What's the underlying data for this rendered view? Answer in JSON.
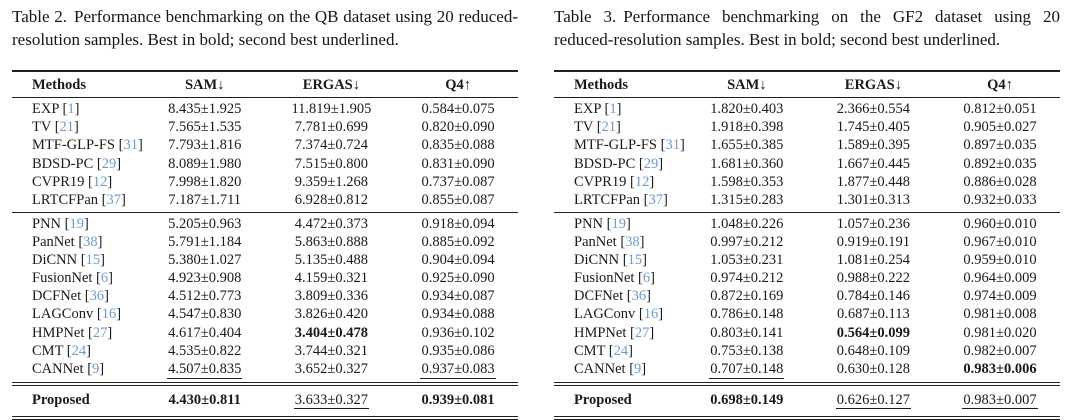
{
  "colors": {
    "citation": "#6b9bd2",
    "text": "#141414",
    "rule": "#1f1f1f"
  },
  "tables": [
    {
      "id": "table-2-qb",
      "caption_label": "Table 2.",
      "caption_text": "Performance benchmarking on the QB dataset using 20 reduced-resolution samples. Best in bold; second best underlined.",
      "headers": [
        "Methods",
        "SAM↓",
        "ERGAS↓",
        "Q4↑"
      ],
      "groups": [
        {
          "rows": [
            {
              "method": "EXP",
              "cite": "1",
              "sam": {
                "v": "8.435±1.925",
                "s": ""
              },
              "ergas": {
                "v": "11.819±1.905",
                "s": ""
              },
              "q4": {
                "v": "0.584±0.075",
                "s": ""
              }
            },
            {
              "method": "TV",
              "cite": "21",
              "sam": {
                "v": "7.565±1.535",
                "s": ""
              },
              "ergas": {
                "v": "7.781±0.699",
                "s": ""
              },
              "q4": {
                "v": "0.820±0.090",
                "s": ""
              }
            },
            {
              "method": "MTF-GLP-FS",
              "cite": "31",
              "sam": {
                "v": "7.793±1.816",
                "s": ""
              },
              "ergas": {
                "v": "7.374±0.724",
                "s": ""
              },
              "q4": {
                "v": "0.835±0.088",
                "s": ""
              }
            },
            {
              "method": "BDSD-PC",
              "cite": "29",
              "sam": {
                "v": "8.089±1.980",
                "s": ""
              },
              "ergas": {
                "v": "7.515±0.800",
                "s": ""
              },
              "q4": {
                "v": "0.831±0.090",
                "s": ""
              }
            },
            {
              "method": "CVPR19",
              "cite": "12",
              "sam": {
                "v": "7.998±1.820",
                "s": ""
              },
              "ergas": {
                "v": "9.359±1.268",
                "s": ""
              },
              "q4": {
                "v": "0.737±0.087",
                "s": ""
              }
            },
            {
              "method": "LRTCFPan",
              "cite": "37",
              "sam": {
                "v": "7.187±1.711",
                "s": ""
              },
              "ergas": {
                "v": "6.928±0.812",
                "s": ""
              },
              "q4": {
                "v": "0.855±0.087",
                "s": ""
              }
            }
          ]
        },
        {
          "rows": [
            {
              "method": "PNN",
              "cite": "19",
              "sam": {
                "v": "5.205±0.963",
                "s": ""
              },
              "ergas": {
                "v": "4.472±0.373",
                "s": ""
              },
              "q4": {
                "v": "0.918±0.094",
                "s": ""
              }
            },
            {
              "method": "PanNet",
              "cite": "38",
              "sam": {
                "v": "5.791±1.184",
                "s": ""
              },
              "ergas": {
                "v": "5.863±0.888",
                "s": ""
              },
              "q4": {
                "v": "0.885±0.092",
                "s": ""
              }
            },
            {
              "method": "DiCNN",
              "cite": "15",
              "sam": {
                "v": "5.380±1.027",
                "s": ""
              },
              "ergas": {
                "v": "5.135±0.488",
                "s": ""
              },
              "q4": {
                "v": "0.904±0.094",
                "s": ""
              }
            },
            {
              "method": "FusionNet",
              "cite": "6",
              "sam": {
                "v": "4.923±0.908",
                "s": ""
              },
              "ergas": {
                "v": "4.159±0.321",
                "s": ""
              },
              "q4": {
                "v": "0.925±0.090",
                "s": ""
              }
            },
            {
              "method": "DCFNet",
              "cite": "36",
              "sam": {
                "v": "4.512±0.773",
                "s": ""
              },
              "ergas": {
                "v": "3.809±0.336",
                "s": ""
              },
              "q4": {
                "v": "0.934±0.087",
                "s": ""
              }
            },
            {
              "method": "LAGConv",
              "cite": "16",
              "sam": {
                "v": "4.547±0.830",
                "s": ""
              },
              "ergas": {
                "v": "3.826±0.420",
                "s": ""
              },
              "q4": {
                "v": "0.934±0.088",
                "s": ""
              }
            },
            {
              "method": "HMPNet",
              "cite": "27",
              "sam": {
                "v": "4.617±0.404",
                "s": ""
              },
              "ergas": {
                "v": "3.404±0.478",
                "s": "b"
              },
              "q4": {
                "v": "0.936±0.102",
                "s": ""
              }
            },
            {
              "method": "CMT",
              "cite": "24",
              "sam": {
                "v": "4.535±0.822",
                "s": ""
              },
              "ergas": {
                "v": "3.744±0.321",
                "s": ""
              },
              "q4": {
                "v": "0.935±0.086",
                "s": ""
              }
            },
            {
              "method": "CANNet",
              "cite": "9",
              "sam": {
                "v": "4.507±0.835",
                "s": "u"
              },
              "ergas": {
                "v": "3.652±0.327",
                "s": ""
              },
              "q4": {
                "v": "0.937±0.083",
                "s": "u"
              }
            }
          ]
        }
      ],
      "footer_row": {
        "method": "Proposed",
        "cite": "",
        "sam": {
          "v": "4.430±0.811",
          "s": "b"
        },
        "ergas": {
          "v": "3.633±0.327",
          "s": "u"
        },
        "q4": {
          "v": "0.939±0.081",
          "s": "b"
        }
      }
    },
    {
      "id": "table-3-gf2",
      "caption_label": "Table 3.",
      "caption_text": "Performance benchmarking on the GF2 dataset using 20 reduced-resolution samples. Best in bold; second best underlined.",
      "headers": [
        "Methods",
        "SAM↓",
        "ERGAS↓",
        "Q4↑"
      ],
      "groups": [
        {
          "rows": [
            {
              "method": "EXP",
              "cite": "1",
              "sam": {
                "v": "1.820±0.403",
                "s": ""
              },
              "ergas": {
                "v": "2.366±0.554",
                "s": ""
              },
              "q4": {
                "v": "0.812±0.051",
                "s": ""
              }
            },
            {
              "method": "TV",
              "cite": "21",
              "sam": {
                "v": "1.918±0.398",
                "s": ""
              },
              "ergas": {
                "v": "1.745±0.405",
                "s": ""
              },
              "q4": {
                "v": "0.905±0.027",
                "s": ""
              }
            },
            {
              "method": "MTF-GLP-FS",
              "cite": "31",
              "sam": {
                "v": "1.655±0.385",
                "s": ""
              },
              "ergas": {
                "v": "1.589±0.395",
                "s": ""
              },
              "q4": {
                "v": "0.897±0.035",
                "s": ""
              }
            },
            {
              "method": "BDSD-PC",
              "cite": "29",
              "sam": {
                "v": "1.681±0.360",
                "s": ""
              },
              "ergas": {
                "v": "1.667±0.445",
                "s": ""
              },
              "q4": {
                "v": "0.892±0.035",
                "s": ""
              }
            },
            {
              "method": "CVPR19",
              "cite": "12",
              "sam": {
                "v": "1.598±0.353",
                "s": ""
              },
              "ergas": {
                "v": "1.877±0.448",
                "s": ""
              },
              "q4": {
                "v": "0.886±0.028",
                "s": ""
              }
            },
            {
              "method": "LRTCFPan",
              "cite": "37",
              "sam": {
                "v": "1.315±0.283",
                "s": ""
              },
              "ergas": {
                "v": "1.301±0.313",
                "s": ""
              },
              "q4": {
                "v": "0.932±0.033",
                "s": ""
              }
            }
          ]
        },
        {
          "rows": [
            {
              "method": "PNN",
              "cite": "19",
              "sam": {
                "v": "1.048±0.226",
                "s": ""
              },
              "ergas": {
                "v": "1.057±0.236",
                "s": ""
              },
              "q4": {
                "v": "0.960±0.010",
                "s": ""
              }
            },
            {
              "method": "PanNet",
              "cite": "38",
              "sam": {
                "v": "0.997±0.212",
                "s": ""
              },
              "ergas": {
                "v": "0.919±0.191",
                "s": ""
              },
              "q4": {
                "v": "0.967±0.010",
                "s": ""
              }
            },
            {
              "method": "DiCNN",
              "cite": "15",
              "sam": {
                "v": "1.053±0.231",
                "s": ""
              },
              "ergas": {
                "v": "1.081±0.254",
                "s": ""
              },
              "q4": {
                "v": "0.959±0.010",
                "s": ""
              }
            },
            {
              "method": "FusionNet",
              "cite": "6",
              "sam": {
                "v": "0.974±0.212",
                "s": ""
              },
              "ergas": {
                "v": "0.988±0.222",
                "s": ""
              },
              "q4": {
                "v": "0.964±0.009",
                "s": ""
              }
            },
            {
              "method": "DCFNet",
              "cite": "36",
              "sam": {
                "v": "0.872±0.169",
                "s": ""
              },
              "ergas": {
                "v": "0.784±0.146",
                "s": ""
              },
              "q4": {
                "v": "0.974±0.009",
                "s": ""
              }
            },
            {
              "method": "LAGConv",
              "cite": "16",
              "sam": {
                "v": "0.786±0.148",
                "s": ""
              },
              "ergas": {
                "v": "0.687±0.113",
                "s": ""
              },
              "q4": {
                "v": "0.981±0.008",
                "s": ""
              }
            },
            {
              "method": "HMPNet",
              "cite": "27",
              "sam": {
                "v": "0.803±0.141",
                "s": ""
              },
              "ergas": {
                "v": "0.564±0.099",
                "s": "b"
              },
              "q4": {
                "v": "0.981±0.020",
                "s": ""
              }
            },
            {
              "method": "CMT",
              "cite": "24",
              "sam": {
                "v": "0.753±0.138",
                "s": ""
              },
              "ergas": {
                "v": "0.648±0.109",
                "s": ""
              },
              "q4": {
                "v": "0.982±0.007",
                "s": ""
              }
            },
            {
              "method": "CANNet",
              "cite": "9",
              "sam": {
                "v": "0.707±0.148",
                "s": "u"
              },
              "ergas": {
                "v": "0.630±0.128",
                "s": ""
              },
              "q4": {
                "v": "0.983±0.006",
                "s": "b"
              }
            }
          ]
        }
      ],
      "footer_row": {
        "method": "Proposed",
        "cite": "",
        "sam": {
          "v": "0.698±0.149",
          "s": "b"
        },
        "ergas": {
          "v": "0.626±0.127",
          "s": "u"
        },
        "q4": {
          "v": "0.983±0.007",
          "s": "u"
        }
      }
    }
  ]
}
